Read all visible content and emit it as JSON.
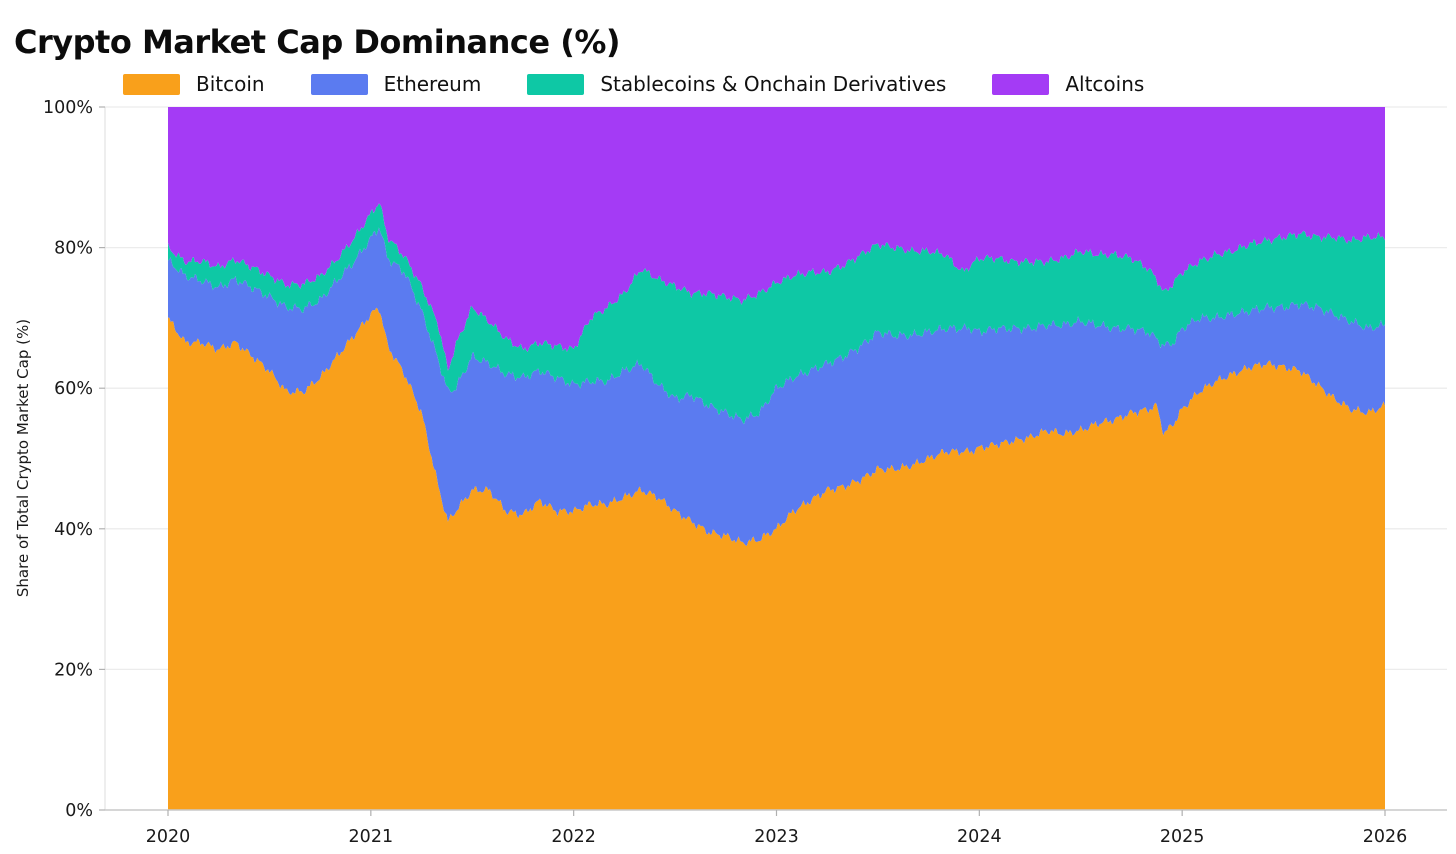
{
  "title": "Crypto Market Cap Dominance (%)",
  "chart_data": {
    "type": "area",
    "stacked": true,
    "title": "Crypto Market Cap Dominance (%)",
    "xlabel": "",
    "ylabel": "Share of Total Crypto Market Cap (%)",
    "ylim": [
      0,
      100
    ],
    "grid": "horizontal",
    "legend_position": "top",
    "y_ticks": [
      "0%",
      "20%",
      "40%",
      "60%",
      "80%",
      "100%"
    ],
    "x_ticks": [
      "2020",
      "2021",
      "2022",
      "2023",
      "2024",
      "2025",
      "2026"
    ],
    "x_unit": "decimal_year",
    "x": [
      2020.0,
      2020.083,
      2020.167,
      2020.25,
      2020.333,
      2020.417,
      2020.5,
      2020.583,
      2020.667,
      2020.75,
      2020.833,
      2020.917,
      2021.0,
      2021.042,
      2021.083,
      2021.167,
      2021.25,
      2021.333,
      2021.38,
      2021.417,
      2021.5,
      2021.583,
      2021.667,
      2021.75,
      2021.833,
      2021.917,
      2022.0,
      2022.083,
      2022.167,
      2022.25,
      2022.333,
      2022.417,
      2022.5,
      2022.583,
      2022.667,
      2022.75,
      2022.833,
      2022.917,
      2023.0,
      2023.083,
      2023.167,
      2023.25,
      2023.333,
      2023.417,
      2023.5,
      2023.583,
      2023.667,
      2023.75,
      2023.833,
      2023.917,
      2023.958,
      2024.0,
      2024.083,
      2024.167,
      2024.25,
      2024.333,
      2024.417,
      2024.5,
      2024.583,
      2024.667,
      2024.75,
      2024.833,
      2024.875,
      2024.91,
      2024.958,
      2025.0,
      2025.083,
      2025.167,
      2025.25,
      2025.333,
      2025.417,
      2025.5,
      2025.583,
      2025.667,
      2025.75,
      2025.833,
      2025.917,
      2026.0
    ],
    "series": [
      {
        "name": "Bitcoin",
        "color": "#F9A01B",
        "values": [
          70,
          66.5,
          66.5,
          65.5,
          66.5,
          64.5,
          62.5,
          59.5,
          59.5,
          61.5,
          64.5,
          67.5,
          70.5,
          71.5,
          66,
          62,
          56.5,
          46,
          41,
          42.5,
          45.5,
          45.5,
          42.5,
          42,
          44,
          42.5,
          42.5,
          43.5,
          43.5,
          44.5,
          45.5,
          44.5,
          42.5,
          41,
          39.5,
          39,
          38,
          38.5,
          40,
          42.5,
          44,
          45.5,
          46,
          47,
          48.5,
          48.5,
          49,
          50,
          51,
          51,
          51,
          51.5,
          52,
          52.5,
          53,
          54,
          53.5,
          54,
          55,
          55.5,
          56.5,
          57,
          57.5,
          53.5,
          55,
          57,
          59.5,
          61,
          62,
          63,
          63.5,
          63,
          62.5,
          60.5,
          58.5,
          57,
          56.5,
          57.5
        ]
      },
      {
        "name": "Ethereum",
        "color": "#5B7BF0",
        "values": [
          8.2,
          9.5,
          8.8,
          8.8,
          9,
          9.8,
          10.5,
          12,
          11.8,
          11,
          10.8,
          10.5,
          10.8,
          11.5,
          12.5,
          14.5,
          14.5,
          18,
          18.5,
          17.5,
          19,
          18,
          19.5,
          19.5,
          18.5,
          19,
          18,
          17.5,
          17.5,
          18,
          18,
          16,
          16,
          18,
          18,
          17.5,
          17.5,
          18,
          20,
          19,
          18.5,
          18,
          18.5,
          19,
          19.5,
          19,
          18.5,
          18,
          17.5,
          17.5,
          17.5,
          16.5,
          16.5,
          16,
          15.5,
          15,
          15.5,
          15.5,
          14,
          13,
          12,
          11,
          9.5,
          12.5,
          11.5,
          11.5,
          10.5,
          9,
          8.5,
          8,
          8,
          8.5,
          9.5,
          11,
          12,
          12.5,
          12,
          11.5
        ]
      },
      {
        "name": "Stablecoins & Onchain Derivatives",
        "color": "#0EC8A5",
        "values": [
          1.8,
          2,
          2.8,
          2.9,
          2.8,
          2.9,
          3,
          3.2,
          3.5,
          3.4,
          3,
          3.3,
          3.5,
          3.5,
          3,
          2.2,
          3.5,
          5,
          3,
          6,
          7,
          6,
          5,
          4,
          4,
          4.5,
          5,
          9,
          10.5,
          11,
          13.5,
          15,
          16,
          14.5,
          16,
          16.5,
          17,
          17,
          15,
          14.5,
          14,
          13,
          13,
          13,
          12.5,
          12.5,
          12,
          11.5,
          10.5,
          8,
          9,
          10.5,
          10,
          9.5,
          9.5,
          9,
          9.5,
          10,
          10,
          10.5,
          10,
          9,
          8.5,
          7.5,
          8.5,
          8,
          8,
          9,
          9,
          9.5,
          9.5,
          10,
          10,
          10,
          11,
          11.5,
          13,
          12.5
        ]
      },
      {
        "name": "Altcoins",
        "color": "#A43BF5",
        "values": [
          20,
          22,
          21.9,
          22.8,
          21.7,
          22.8,
          24,
          25.3,
          25.2,
          24.1,
          21.7,
          18.7,
          15.2,
          13.5,
          18.5,
          21.3,
          25.5,
          31,
          37.5,
          34,
          28.5,
          30.5,
          33,
          34.5,
          33.5,
          34,
          34.5,
          30,
          28.5,
          26.5,
          23,
          24.5,
          25.5,
          26.5,
          26.5,
          27,
          27.5,
          26.5,
          25,
          24,
          23.5,
          23.5,
          22.5,
          21,
          19.5,
          20,
          20.5,
          20.5,
          21,
          23.5,
          22.5,
          21.5,
          21.5,
          22,
          22,
          22,
          21.5,
          20.5,
          21,
          21,
          21.5,
          23,
          24.5,
          26.5,
          25,
          23.5,
          22,
          21,
          20.5,
          19.5,
          19,
          18.5,
          18,
          18.5,
          18.5,
          19,
          18.5,
          18.5
        ]
      }
    ],
    "axis_color": "#c9c9c9",
    "gridline_color": "#ececec",
    "tick_color": "#b0b0b0",
    "text_color": "#1a1a1a"
  }
}
